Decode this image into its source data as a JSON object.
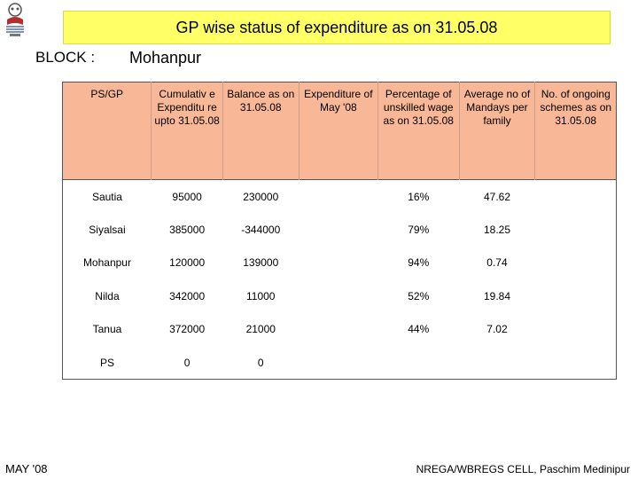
{
  "title": "GP wise status of expenditure as on 31.05.08",
  "block": {
    "label": "BLOCK :",
    "value": "Mohanpur"
  },
  "table": {
    "headers": [
      "PS/GP",
      "Cumulativ e Expenditu re upto 31.05.08",
      "Balance as on 31.05.08",
      "Expenditure of May '08",
      "Percentage of unskilled wage as on 31.05.08",
      "Average no of Mandays per family",
      "No. of ongoing schemes as on 31.05.08"
    ],
    "rows": [
      [
        "Sautia",
        "95000",
        "230000",
        "",
        "16%",
        "47.62",
        ""
      ],
      [
        "Siyalsai",
        "385000",
        "-344000",
        "",
        "79%",
        "18.25",
        ""
      ],
      [
        "Mohanpur",
        "120000",
        "139000",
        "",
        "94%",
        "0.74",
        ""
      ],
      [
        "Nilda",
        "342000",
        "11000",
        "",
        "52%",
        "19.84",
        ""
      ],
      [
        "Tanua",
        "372000",
        "21000",
        "",
        "44%",
        "7.02",
        ""
      ],
      [
        "PS",
        "0",
        "0",
        "",
        "",
        "",
        ""
      ]
    ]
  },
  "footer": {
    "left": "MAY '08",
    "right": "NREGA/WBREGS CELL, Paschim Medinipur"
  },
  "colors": {
    "title_bg": "#ffff66",
    "header_bg": "#f8b898"
  },
  "icons": {
    "logo": "emblem-logo"
  }
}
